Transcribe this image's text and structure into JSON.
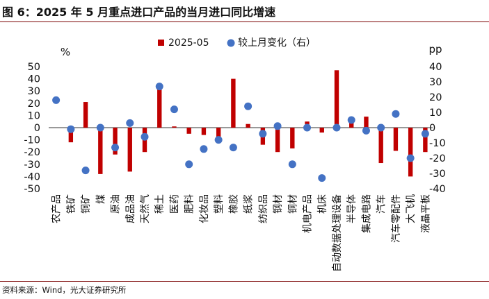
{
  "title": "图 6：2025 年 5 月重点进口产品的当月进口同比增速",
  "source": "资料来源：Wind，光大证券研究所",
  "chart_data": {
    "type": "bar",
    "title": "",
    "left_unit": "%",
    "right_unit": "pp",
    "ylim_left": [
      -50,
      50
    ],
    "ylim_right": [
      -40,
      40
    ],
    "yticks_left": [
      50,
      40,
      30,
      20,
      10,
      0,
      -10,
      -20,
      -30,
      -40,
      -50
    ],
    "yticks_right": [
      40,
      30,
      20,
      10,
      0,
      -10,
      -20,
      -30,
      -40
    ],
    "legend_position": "top-center",
    "categories": [
      "农产品",
      "铁矿",
      "铜矿",
      "煤",
      "原油",
      "成品油",
      "天然气",
      "稀土",
      "医药",
      "肥料",
      "化妆品",
      "塑料",
      "橡胶",
      "纸浆",
      "纺织品",
      "钢材",
      "铜材",
      "机电产品",
      "机床",
      "自动数据处理设备",
      "半导体",
      "集成电路",
      "汽车",
      "汽车零配件",
      "大飞机",
      "液晶平板"
    ],
    "series": [
      {
        "name": "2025-05",
        "type": "bar",
        "axis": "left",
        "color": "#c00000",
        "values": [
          0,
          -12,
          21,
          -38,
          -22,
          -36,
          -20,
          32,
          1,
          -5,
          -6,
          -9,
          40,
          3,
          -14,
          -20,
          -17,
          5,
          -4,
          47,
          4,
          9,
          -29,
          -19,
          -40,
          -20
        ]
      },
      {
        "name": "较上月变化（右）",
        "type": "scatter",
        "axis": "right",
        "color": "#4472c4",
        "values": [
          18,
          -1,
          -28,
          0,
          -13,
          3,
          -6,
          27,
          12,
          -24,
          -14,
          -8,
          -13,
          14,
          -4,
          1,
          -24,
          0,
          -33,
          0,
          5,
          -2,
          0,
          9,
          -20,
          -4
        ]
      }
    ]
  }
}
